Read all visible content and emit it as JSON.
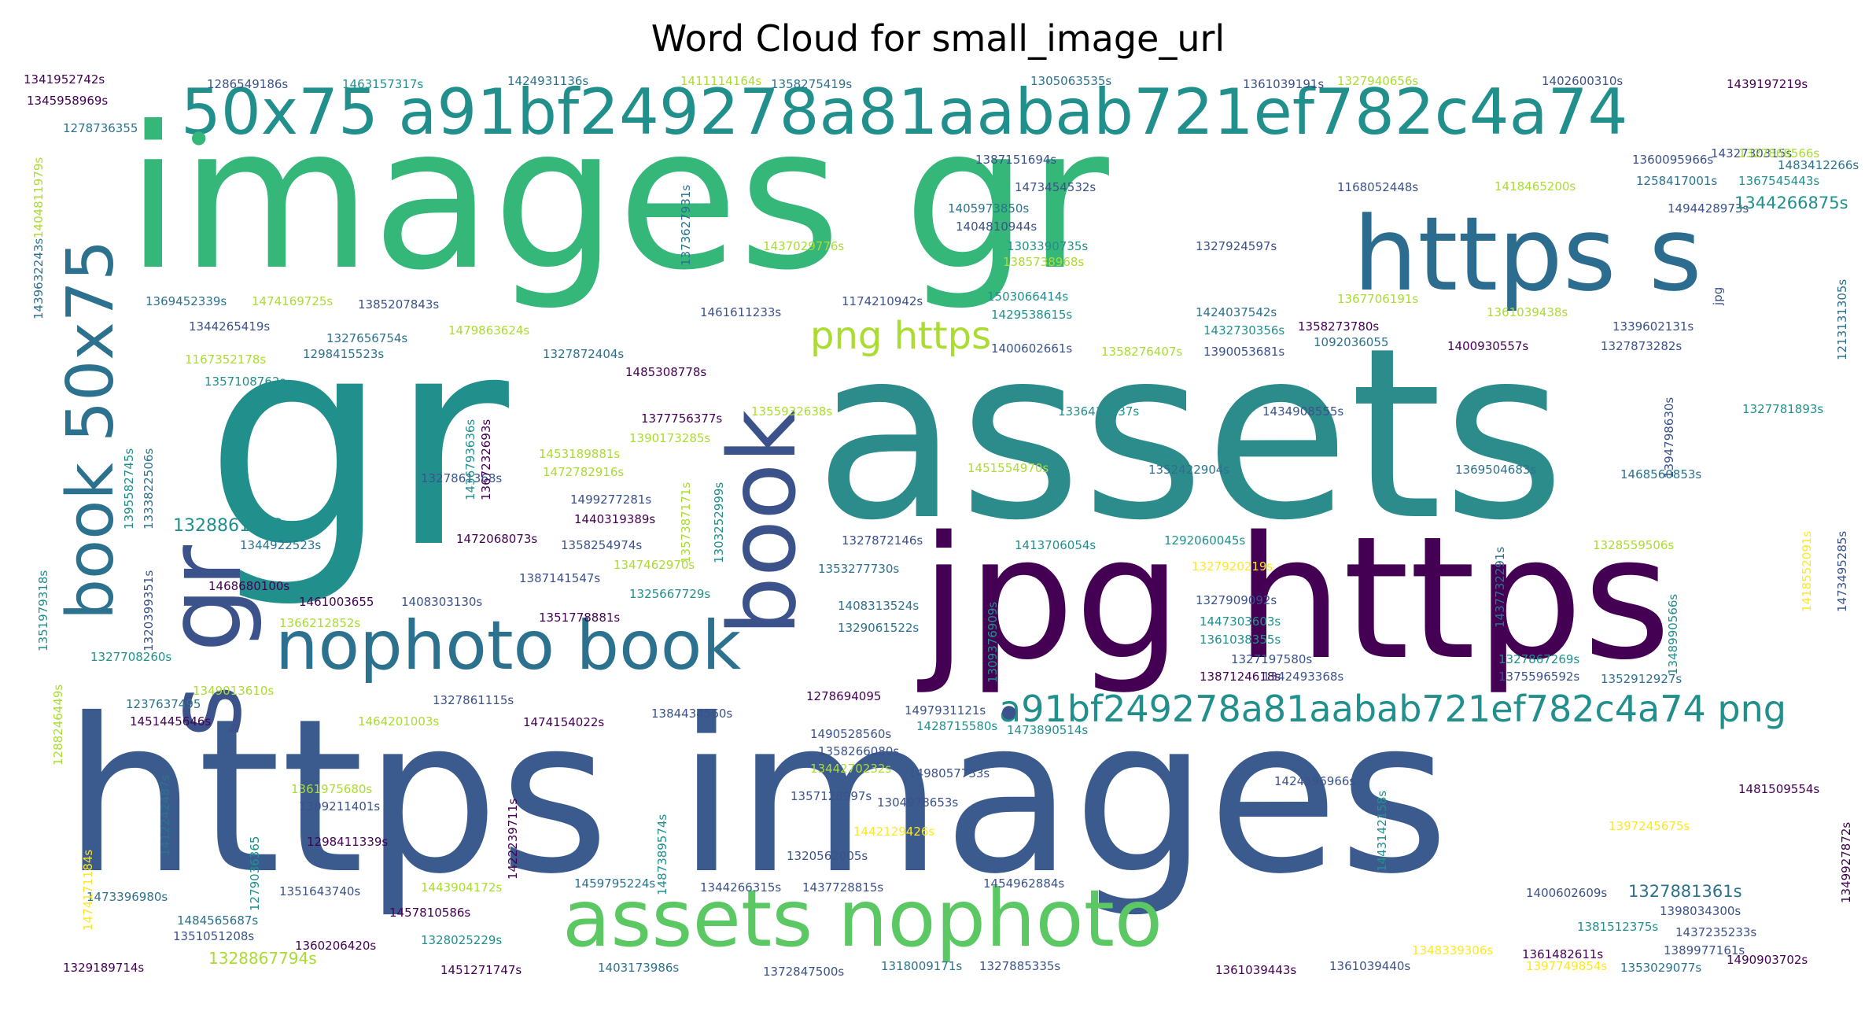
{
  "title": "Word Cloud for small_image_url",
  "colors": {
    "c1": "#440154",
    "c2": "#3b528b",
    "c3": "#2c728e",
    "c4": "#21908d",
    "c5": "#27ad81",
    "c6": "#5cc863",
    "c7": "#aadc32",
    "c8": "#fde725"
  },
  "words": {
    "large": [
      "images gr",
      "gr",
      "assets",
      "https images",
      "jpg https",
      "https s",
      "50x75 a91bf249278a81aabab721ef782c4a74",
      "s gr",
      "book 50x75",
      "book",
      "nophoto book",
      "assets nophoto",
      "a91bf249278a81aabab721ef782c4a74 png",
      "png https"
    ],
    "small": [
      "1341952742s",
      "1345958969s",
      "1278736355",
      "1286549186s",
      "1463157317s",
      "1424931136s",
      "1411114164s",
      "1358275419s",
      "1305063535s",
      "1361039191s",
      "1327940656s",
      "1402600310s",
      "1439197219s",
      "1387151694s",
      "1360095966s",
      "1483412266s",
      "1432730315s",
      "1327868566s",
      "1473454532s",
      "1168052448s",
      "1258417001s",
      "1367545443s",
      "1405973850s",
      "1418465200s",
      "1494428973s",
      "1404810944s",
      "1344266875s",
      "1437029776s",
      "1303390735s",
      "1327924597s",
      "1385738968s",
      "1369452339s",
      "1474169725s",
      "1385207843s",
      "1174210942s",
      "1503066414s",
      "1429538615s",
      "1424037542s",
      "1367706191s",
      "1361039438s",
      "1461611233s",
      "1344265419s",
      "1327656754s",
      "1479863624s",
      "1432730356s",
      "1358273780s",
      "1339602131s",
      "1298415523s",
      "1092036055",
      "1400602661s",
      "1358276407s",
      "1390053681s",
      "1400930557s",
      "1327873282s",
      "1167352178s",
      "1327872404s",
      "1357108762s",
      "1485308778s",
      "1355932638s",
      "1336418837s",
      "1434908555s",
      "1327781893s",
      "1377756377s",
      "1390173285s",
      "1453189881s",
      "1472782916s",
      "1451554970s",
      "1352422904s",
      "1369504683s",
      "1468560853s",
      "1327861368s",
      "1499277281s",
      "1440319389s",
      "1328861813s",
      "1472068073s",
      "1358254974s",
      "1327872146s",
      "1413706054s",
      "1292060045s",
      "1344922523s",
      "1347462970s",
      "1327920219s",
      "1328559506s",
      "1387141547s",
      "1353277730s",
      "1468680100s",
      "1325667729s",
      "1327909092s",
      "1461003655",
      "1408303130s",
      "1408313524s",
      "1447303603s",
      "1351778881s",
      "1329061522s",
      "1361038355s",
      "1366212852s",
      "1327197580s",
      "1327867269s",
      "1387124618s",
      "1342493368s",
      "1375596592s",
      "1327708260s",
      "1352912927s",
      "1349013610s",
      "1327861115s",
      "1278694095",
      "1237637495",
      "1384434560s",
      "1497931121s",
      "1451445646s",
      "1464201003s",
      "1474154022s",
      "1428715580s",
      "1473890514s",
      "1490528560s",
      "1358266080s",
      "1344270232s",
      "1498057733s",
      "1424596966s",
      "1361975680s",
      "1357128997s",
      "1481509554s",
      "1309211401s",
      "1304978653s",
      "1442129426s",
      "1298411339s",
      "1397245675s",
      "1320562005s",
      "1473396980s",
      "1351643740s",
      "1443904172s",
      "1459795224s",
      "1344266315s",
      "1437728815s",
      "1454962884s",
      "1327881361s",
      "1400602609s",
      "1484565687s",
      "1457810586s",
      "1398034300s",
      "1351051208s",
      "1360206420s",
      "1381512375s",
      "1328025229s",
      "1437235233s",
      "1328867794s",
      "1348339306s",
      "1361482611s",
      "1389977161s",
      "1329189714s",
      "1451271747s",
      "1403173986s",
      "1372847500s",
      "1318009171s",
      "1327885335s",
      "1361039443s",
      "1361039440s",
      "1397749854s",
      "1353029077s",
      "1490903702s"
    ],
    "vertical_small": [
      "1404811979s",
      "1436793636s",
      "1395582745s",
      "1333822506s",
      "1351979318s",
      "1320399351s",
      "1288246449s",
      "1412242487s",
      "1279036365",
      "1422239711s",
      "1474171184s",
      "1357387171s",
      "1303252999s",
      "1373627931s",
      "1367232693s",
      "1487389574s",
      "1309376909s",
      "1437732291s",
      "1348990566s",
      "1394798630s",
      "1213131305s",
      "1418552091s",
      "1473495285s",
      "1443142158s",
      "1349927872s",
      "1439632243s",
      "jpg"
    ]
  }
}
